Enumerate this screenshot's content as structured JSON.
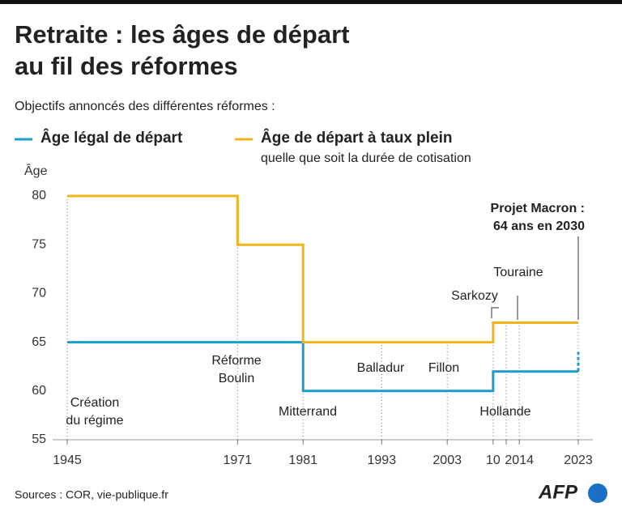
{
  "chart_data": {
    "type": "step-line",
    "title": [
      "Retraite : les âges de départ",
      "au fil des réformes"
    ],
    "subtitle": "Objectifs annoncés des différentes réformes :",
    "y_label": "Âge",
    "legend_note": "quelle que soit la durée de cotisation",
    "series": [
      {
        "name": "Âge légal de départ",
        "color": "#1b9ccb",
        "x": [
          1945,
          1981,
          1981,
          2010,
          2010,
          2023
        ],
        "values": [
          65,
          65,
          60,
          60,
          62,
          62
        ],
        "projection": {
          "x": [
            2023,
            2023
          ],
          "values": [
            62,
            64
          ]
        }
      },
      {
        "name": "Âge de départ à taux plein",
        "color": "#f2b31b",
        "x": [
          1945,
          1971,
          1971,
          1981,
          1981,
          2010,
          2010,
          2023
        ],
        "values": [
          80,
          80,
          75,
          75,
          65,
          65,
          67,
          67
        ]
      }
    ],
    "xlim": [
      1945,
      2023
    ],
    "xticks": [
      1945,
      1971,
      1981,
      1993,
      2003,
      {
        "value": 2010,
        "label": "10"
      },
      {
        "value": 2012,
        "label": null
      },
      2014,
      2023
    ],
    "ylim": [
      55,
      80
    ],
    "yticks": [
      55,
      60,
      65,
      70,
      75,
      80
    ],
    "annotations": [
      [
        "Création",
        "du régime"
      ],
      [
        "Réforme",
        "Boulin"
      ],
      [
        "Mitterrand"
      ],
      [
        "Balladur"
      ],
      [
        "Fillon"
      ],
      [
        "Hollande"
      ],
      [
        "Sarkozy"
      ],
      [
        "Touraine"
      ],
      [
        "Projet Macron :",
        "64 ans en 2030"
      ]
    ],
    "source": "Sources : COR, vie-publique.fr",
    "logo": "AFP"
  }
}
